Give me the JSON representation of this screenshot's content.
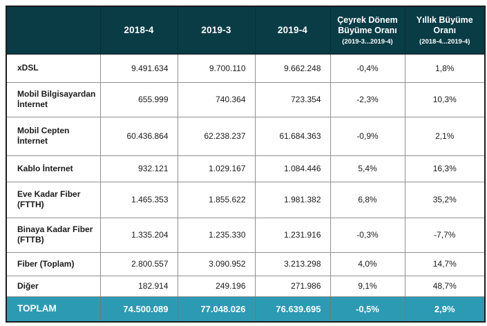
{
  "table": {
    "columns": [
      {
        "label": ""
      },
      {
        "label": "2018-4"
      },
      {
        "label": "2019-3"
      },
      {
        "label": "2019-4"
      },
      {
        "label": "Çeyrek Dönem Büyüme Oranı",
        "sublabel": "(2019-3...2019-4)"
      },
      {
        "label": "Yıllık Büyüme Oranı",
        "sublabel": "(2018-4...2019-4)"
      }
    ],
    "rows": [
      {
        "label": "xDSL",
        "values": [
          "9.491.634",
          "9.700.110",
          "9.662.248",
          "-0,4%",
          "1,8%"
        ]
      },
      {
        "label": "Mobil Bilgisayardan İnternet",
        "values": [
          "655.999",
          "740.364",
          "723.354",
          "-2,3%",
          "10,3%"
        ]
      },
      {
        "label": "Mobil Cepten İnternet",
        "values": [
          "60.436.864",
          "62.238.237",
          "61.684.363",
          "-0,9%",
          "2,1%"
        ]
      },
      {
        "label": "Kablo İnternet",
        "values": [
          "932.121",
          "1.029.167",
          "1.084.446",
          "5,4%",
          "16,3%"
        ]
      },
      {
        "label": "Eve Kadar Fiber (FTTH)",
        "values": [
          "1.465.353",
          "1.855.622",
          "1.981.382",
          "6,8%",
          "35,2%"
        ]
      },
      {
        "label": "Binaya Kadar Fiber (FTTB)",
        "values": [
          "1.335.204",
          "1.235.330",
          "1.231.916",
          "-0,3%",
          "-7,7%"
        ]
      },
      {
        "label": "Fiber (Toplam)",
        "values": [
          "2.800.557",
          "3.090.952",
          "3.213.298",
          "4,0%",
          "14,7%"
        ]
      },
      {
        "label": "Diğer",
        "values": [
          "182.914",
          "249.196",
          "271.986",
          "9,1%",
          "48,7%"
        ]
      }
    ],
    "total_row": {
      "label": "TOPLAM",
      "values": [
        "74.500.089",
        "77.048.026",
        "76.639.695",
        "-0,5%",
        "2,9%"
      ]
    }
  },
  "colors": {
    "header_bg": "#0a3c46",
    "total_bg": "#2d9ab4",
    "grid": "#8f8f8f",
    "outer_border": "#1b1b1b"
  }
}
